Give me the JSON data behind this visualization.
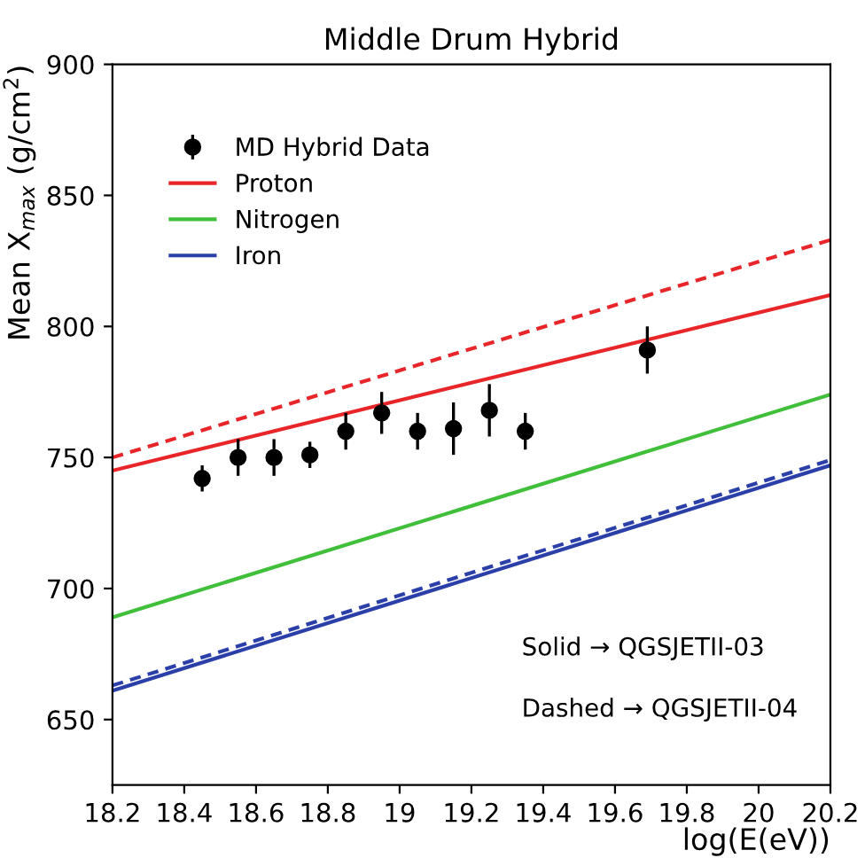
{
  "chart_data": {
    "type": "line",
    "title": "Middle Drum Hybrid",
    "xlabel": "log(E(eV))",
    "ylabel": "Mean X$_{max}$ (g/cm$^{2}$)",
    "xlim": [
      18.2,
      20.2
    ],
    "xticks": [
      18.2,
      18.4,
      18.6,
      18.8,
      {
        "value": 19,
        "label": "19"
      },
      19.2,
      19.4,
      19.6,
      19.8,
      {
        "value": 20,
        "label": "20"
      },
      20.2
    ],
    "ylim": [
      625,
      900
    ],
    "yticks": [
      650,
      700,
      750,
      800,
      850,
      900
    ],
    "grid": false,
    "legend": "top left",
    "series": [
      {
        "name": "MD Hybrid Data",
        "type": "scatter",
        "color": "#000000",
        "marker": "circle",
        "x": [
          18.45,
          18.55,
          18.65,
          18.75,
          18.85,
          18.95,
          19.05,
          19.15,
          19.25,
          19.35,
          19.69
        ],
        "values": [
          742,
          750,
          750,
          751,
          760,
          767,
          760,
          761,
          768,
          760,
          791
        ],
        "errors": [
          5,
          7,
          7,
          5,
          7,
          8,
          7,
          10,
          10,
          7,
          9
        ]
      },
      {
        "name": "Proton",
        "color": "#e8262a",
        "line_style": "solid",
        "x": [
          18.2,
          20.2
        ],
        "values": [
          745,
          812
        ]
      },
      {
        "name": "Nitrogen",
        "color": "#3fbf3a",
        "line_style": "solid",
        "x": [
          18.2,
          20.2
        ],
        "values": [
          689,
          774
        ]
      },
      {
        "name": "Iron",
        "color": "#2b3fa8",
        "line_style": "solid",
        "x": [
          18.2,
          20.2
        ],
        "values": [
          661,
          747
        ]
      },
      {
        "color": "#e8262a",
        "line_style": "dashed",
        "x": [
          18.2,
          20.2
        ],
        "values": [
          750,
          833
        ]
      },
      {
        "color": "#2b3fa8",
        "line_style": "dashed",
        "x": [
          18.2,
          20.2
        ],
        "values": [
          663,
          749
        ]
      }
    ],
    "annotations": [
      "Solid → QGSJETII-03",
      "Dashed → QGSJETII-04"
    ]
  }
}
